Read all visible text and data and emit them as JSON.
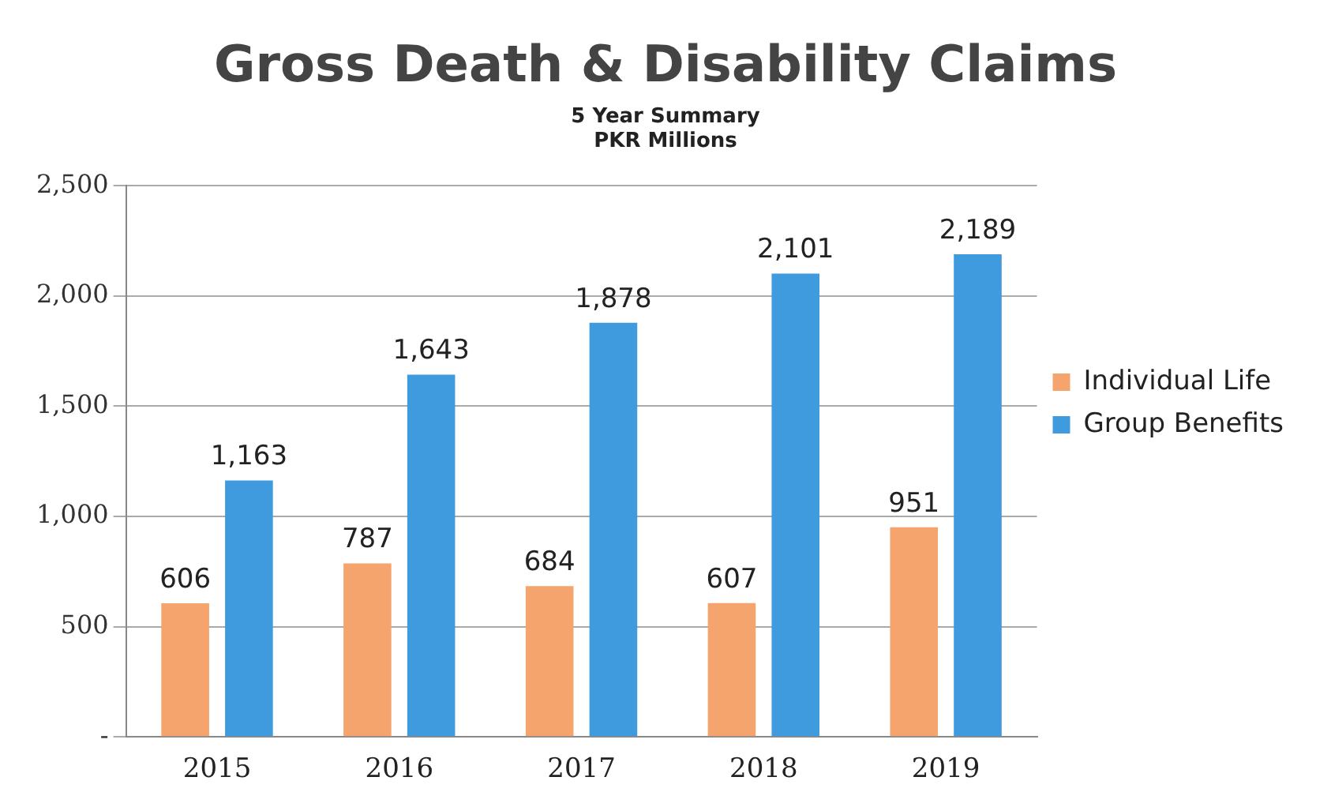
{
  "chart_data": {
    "type": "bar",
    "title": "Gross Death & Disability Claims",
    "subtitle": "5 Year Summary",
    "annotations": [
      "PKR Millions"
    ],
    "categories": [
      "2015",
      "2016",
      "2017",
      "2018",
      "2019"
    ],
    "series": [
      {
        "name": "Individual Life",
        "color": "#f4a46c",
        "values": [
          606,
          787,
          684,
          607,
          951
        ],
        "value_labels": [
          "606",
          "787",
          "684",
          "607",
          "951"
        ]
      },
      {
        "name": "Group Benefits",
        "color": "#3f9ade",
        "values": [
          1163,
          1643,
          1878,
          2101,
          2189
        ],
        "value_labels": [
          "1,163",
          "1,643",
          "1,878",
          "2,101",
          "2,189"
        ]
      }
    ],
    "ylim": [
      0,
      2500
    ],
    "yticks": [
      {
        "value": 0,
        "label": "-"
      },
      500,
      {
        "value": 1000,
        "label": "1,000"
      },
      {
        "value": 1500,
        "label": "1,500"
      },
      {
        "value": 2000,
        "label": "2,000"
      },
      {
        "value": 2500,
        "label": "2,500"
      }
    ],
    "grid": "y",
    "legend": "right"
  }
}
